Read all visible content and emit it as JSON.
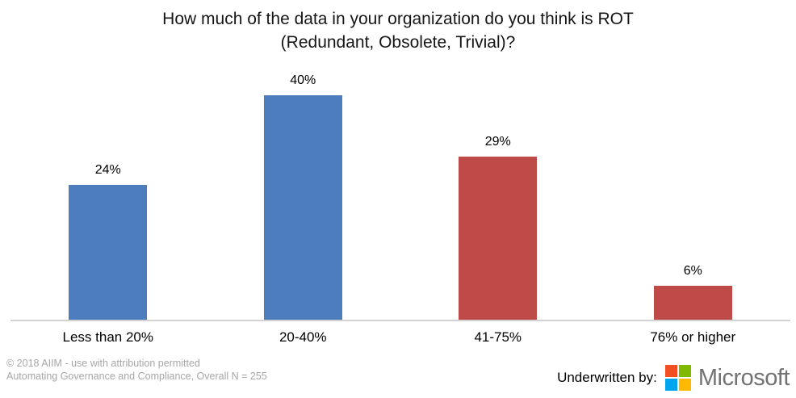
{
  "title": {
    "line1": "How much of the data in your organization do you think is ROT",
    "line2": "(Redundant, Obsolete, Trivial)?"
  },
  "chart_data": {
    "type": "bar",
    "title": "How much of the data in your organization do you think is ROT (Redundant, Obsolete, Trivial)?",
    "categories": [
      "Less than 20%",
      "20-40%",
      "41-75%",
      "76% or higher"
    ],
    "values": [
      24,
      40,
      29,
      6
    ],
    "value_labels": [
      "24%",
      "40%",
      "29%",
      "6%"
    ],
    "bar_colors": [
      "#4E7DBE",
      "#4E7DBE",
      "#BE4B48",
      "#BE4B48"
    ],
    "xlabel": "",
    "ylabel": "",
    "ylim": [
      0,
      44
    ],
    "grid": false,
    "legend": false,
    "data_labels": "above bars",
    "axis_line_color": "#D3D3D3"
  },
  "footer": {
    "copyright_line1": "© 2018 AIIM - use with attribution permitted",
    "copyright_line2": "Automating Governance and Compliance, Overall N = 255",
    "underwritten_label": "Underwritten by:",
    "sponsor_name": "Microsoft",
    "logo_colors": {
      "red": "#F25022",
      "green": "#7FBA00",
      "blue": "#00A4EF",
      "yellow": "#FFB900"
    },
    "wordmark_color": "#737373"
  }
}
